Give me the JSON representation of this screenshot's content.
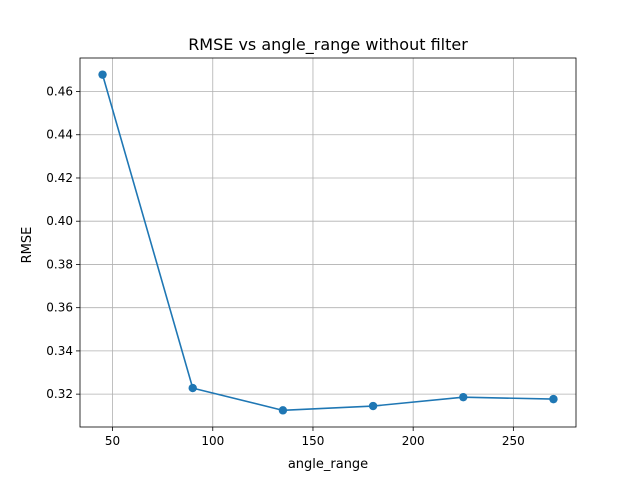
{
  "chart_data": {
    "type": "line",
    "title": "RMSE vs angle_range without filter",
    "xlabel": "angle_range",
    "ylabel": "RMSE",
    "x": [
      45,
      90,
      135,
      180,
      225,
      270
    ],
    "series": [
      {
        "values": [
          0.4678,
          0.3228,
          0.3125,
          0.3145,
          0.3186,
          0.3177
        ]
      }
    ],
    "xlim": [
      33.75,
      281.25
    ],
    "ylim": [
      0.3048,
      0.4755
    ],
    "xticks": [
      50,
      100,
      150,
      200,
      250
    ],
    "yticks": [
      0.32,
      0.34,
      0.36,
      0.38,
      0.4,
      0.42,
      0.44,
      0.46
    ],
    "xtick_labels": [
      "50",
      "100",
      "150",
      "200",
      "250"
    ],
    "ytick_labels": [
      "0.32",
      "0.34",
      "0.36",
      "0.38",
      "0.40",
      "0.42",
      "0.44",
      "0.46"
    ],
    "grid": true,
    "line_color": "#1f77b4",
    "grid_color": "#b0b0b0",
    "marker": "circle"
  }
}
